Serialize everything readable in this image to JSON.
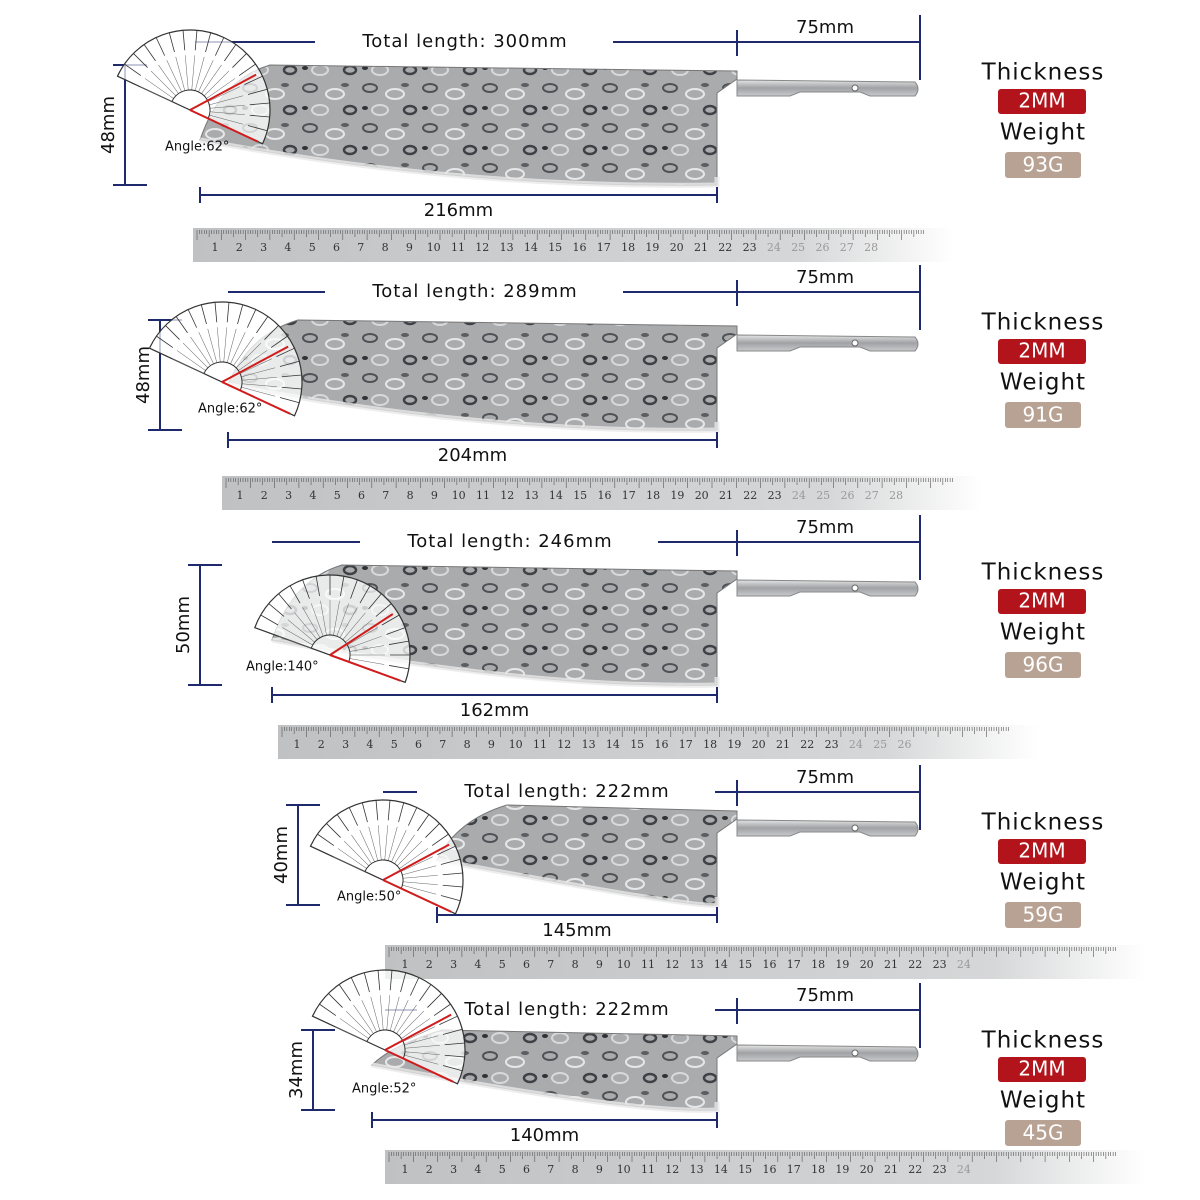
{
  "items": [
    {
      "total_length": "Total length: 300mm",
      "tang": "75mm",
      "blade_length": "216mm",
      "height": "48mm",
      "angle": "Angle:62°",
      "thickness_label": "Thickness",
      "thickness": "2MM",
      "weight_label": "Weight",
      "weight": "93G",
      "ruler": [
        1,
        2,
        3,
        4,
        5,
        6,
        7,
        8,
        9,
        10,
        11,
        12,
        13,
        14,
        15,
        16,
        17,
        18,
        19,
        20,
        21,
        22,
        23,
        24,
        25,
        26,
        27,
        28
      ]
    },
    {
      "total_length": "Total length: 289mm",
      "tang": "75mm",
      "blade_length": "204mm",
      "height": "48mm",
      "angle": "Angle:62°",
      "thickness_label": "Thickness",
      "thickness": "2MM",
      "weight_label": "Weight",
      "weight": "91G",
      "ruler": [
        1,
        2,
        3,
        4,
        5,
        6,
        7,
        8,
        9,
        10,
        11,
        12,
        13,
        14,
        15,
        16,
        17,
        18,
        19,
        20,
        21,
        22,
        23,
        24,
        25,
        26,
        27,
        28
      ]
    },
    {
      "total_length": "Total length: 246mm",
      "tang": "75mm",
      "blade_length": "162mm",
      "height": "50mm",
      "angle": "Angle:140°",
      "thickness_label": "Thickness",
      "thickness": "2MM",
      "weight_label": "Weight",
      "weight": "96G",
      "ruler": [
        1,
        2,
        3,
        4,
        5,
        6,
        7,
        8,
        9,
        10,
        11,
        12,
        13,
        14,
        15,
        16,
        17,
        18,
        19,
        20,
        21,
        22,
        23,
        24,
        25,
        26
      ]
    },
    {
      "total_length": "Total length: 222mm",
      "tang": "75mm",
      "blade_length": "145mm",
      "height": "40mm",
      "angle": "Angle:50°",
      "thickness_label": "Thickness",
      "thickness": "2MM",
      "weight_label": "Weight",
      "weight": "59G",
      "ruler": [
        1,
        2,
        3,
        4,
        5,
        6,
        7,
        8,
        9,
        10,
        11,
        12,
        13,
        14,
        15,
        16,
        17,
        18,
        19,
        20,
        21,
        22,
        23,
        24
      ]
    },
    {
      "total_length": "Total length: 222mm",
      "tang": "75mm",
      "blade_length": "140mm",
      "height": "34mm",
      "angle": "Angle:52°",
      "thickness_label": "Thickness",
      "thickness": "2MM",
      "weight_label": "Weight",
      "weight": "45G",
      "ruler": [
        1,
        2,
        3,
        4,
        5,
        6,
        7,
        8,
        9,
        10,
        11,
        12,
        13,
        14,
        15,
        16,
        17,
        18,
        19,
        20,
        21,
        22,
        23,
        24
      ]
    }
  ]
}
